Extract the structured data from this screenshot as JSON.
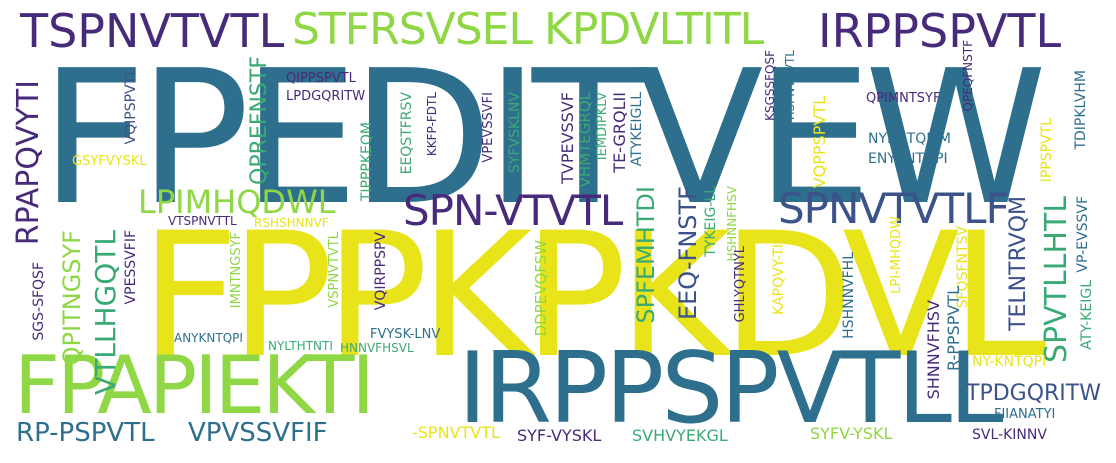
{
  "colors": {
    "purple": "#472a7a",
    "teal": "#2e6f8e",
    "green": "#3aaa75",
    "lime": "#8fd744",
    "yellow": "#e8e419",
    "blue": "#3b528b"
  },
  "words": [
    {
      "text": "FPEDITVEW",
      "color": "#2e6f8e"
    },
    {
      "text": "FPPKPKDVL",
      "color": "#e8e419"
    },
    {
      "text": "IRPPSPVTLL",
      "color": "#2e6f8e"
    },
    {
      "text": "FPAPIEKTI",
      "color": "#8fd744"
    },
    {
      "text": "TSPNVTVTL",
      "color": "#472a7a"
    },
    {
      "text": "STFRSVSEL",
      "color": "#8fd744"
    },
    {
      "text": "KPDVLTITL",
      "color": "#8fd744"
    },
    {
      "text": "IRPPSPVTL",
      "color": "#472a7a"
    },
    {
      "text": "SPN-VTVTL",
      "color": "#472a7a"
    },
    {
      "text": "SPNVTVTLF",
      "color": "#3b528b"
    },
    {
      "text": "LPIMHQDWL",
      "color": "#8fd744"
    },
    {
      "text": "RP-PSPVTL",
      "color": "#2e6f8e"
    },
    {
      "text": "VPVSSVFIF",
      "color": "#2e6f8e"
    },
    {
      "text": "RPAPQVYTI",
      "color": "#472a7a"
    },
    {
      "text": "QPREFNSTF",
      "color": "#3aaa75"
    },
    {
      "text": "VTLLHGQTL",
      "color": "#3aaa75"
    },
    {
      "text": "QPITNGSYF",
      "color": "#8fd744"
    },
    {
      "text": "SPFEMHTDI",
      "color": "#3aaa75"
    },
    {
      "text": "EEQ-FNSTF",
      "color": "#3b528b"
    },
    {
      "text": "SPVTLLHTL",
      "color": "#3aaa75"
    },
    {
      "text": "TELNTRVQM",
      "color": "#3b528b"
    },
    {
      "text": "TPDGQRITW",
      "color": "#3b528b"
    },
    {
      "text": "QIPPSPVTL",
      "color": "#472a7a"
    },
    {
      "text": "LPDGQRITW",
      "color": "#472a7a"
    },
    {
      "text": "VQIPSPVTL",
      "color": "#3b528b"
    },
    {
      "text": "GSYFVYSKL",
      "color": "#e8e419"
    },
    {
      "text": "KKFP-FDTL",
      "color": "#472a7a"
    },
    {
      "text": "EEQSTFRSV",
      "color": "#3aaa75"
    },
    {
      "text": "TIPPPKEQM",
      "color": "#3aaa75"
    },
    {
      "text": "VPEVSSVFI",
      "color": "#472a7a"
    },
    {
      "text": "SYFVSKLNV",
      "color": "#3aaa75"
    },
    {
      "text": "TVPEVSSVF",
      "color": "#472a7a"
    },
    {
      "text": "VHMTEGRQL",
      "color": "#3aaa75"
    },
    {
      "text": "IEMDIPKLV",
      "color": "#3aaa75"
    },
    {
      "text": "TE-GRQLII",
      "color": "#472a7a"
    },
    {
      "text": "ATYKEIGLL",
      "color": "#2e6f8e"
    },
    {
      "text": "TYKEIG-LL",
      "color": "#3aaa75"
    },
    {
      "text": "HSHNNFHSV",
      "color": "#8fd744"
    },
    {
      "text": "KSGSSFQSF",
      "color": "#472a7a"
    },
    {
      "text": "RSPNVTVTL",
      "color": "#2e6f8e"
    },
    {
      "text": "QPEQFNSTF",
      "color": "#472a7a"
    },
    {
      "text": "TDIPKLVHM",
      "color": "#2e6f8e"
    },
    {
      "text": "QPIMNTSYF",
      "color": "#472a7a"
    },
    {
      "text": "NYKNTQPIM",
      "color": "#2e6f8e"
    },
    {
      "text": "ENYKNTQPI",
      "color": "#2e6f8e"
    },
    {
      "text": "VQPPSPVTL",
      "color": "#e8e419"
    },
    {
      "text": "IPPSPVTL",
      "color": "#e8e419"
    },
    {
      "text": "VP-EVSSVF",
      "color": "#2e6f8e"
    },
    {
      "text": "VTSPNVTTL",
      "color": "#472a7a"
    },
    {
      "text": "RSHSHNNVF",
      "color": "#e8e419"
    },
    {
      "text": "SGS-SFQSF",
      "color": "#472a7a"
    },
    {
      "text": "VPESSVFIF",
      "color": "#472a7a"
    },
    {
      "text": "IMNTNGSYF",
      "color": "#8fd744"
    },
    {
      "text": "VSPNVTVTL",
      "color": "#8fd744"
    },
    {
      "text": "VQIRPPSPV",
      "color": "#472a7a"
    },
    {
      "text": "DDPEVQFSW",
      "color": "#8fd744"
    },
    {
      "text": "GHLYQTNYL",
      "color": "#472a7a"
    },
    {
      "text": "KAPQVY-TI",
      "color": "#e8e419"
    },
    {
      "text": "HSHNNVFHL",
      "color": "#2e6f8e"
    },
    {
      "text": "LPI-MHQDW",
      "color": "#e8e419"
    },
    {
      "text": "SFQSFNTSV",
      "color": "#e8e419"
    },
    {
      "text": "SHNNVFHSV",
      "color": "#472a7a"
    },
    {
      "text": "R-PPSPVTL",
      "color": "#2e6f8e"
    },
    {
      "text": "ATY-KEIGL",
      "color": "#3aaa75"
    },
    {
      "text": "NY-KNTQPI",
      "color": "#e8e419"
    },
    {
      "text": "ANYKNTQPI",
      "color": "#2e6f8e"
    },
    {
      "text": "NYLTHTNTI",
      "color": "#3aaa75"
    },
    {
      "text": "HNNVFHSVL",
      "color": "#3aaa75"
    },
    {
      "text": "FVYSK-LNV",
      "color": "#2e6f8e"
    },
    {
      "text": "FIIANATYI",
      "color": "#2e6f8e"
    },
    {
      "text": "-SPNVTVTL",
      "color": "#e8e419"
    },
    {
      "text": "SYF-VYSKL",
      "color": "#472a7a"
    },
    {
      "text": "SVHVYEKGL",
      "color": "#3aaa75"
    },
    {
      "text": "SYFV-YSKL",
      "color": "#8fd744"
    },
    {
      "text": "SVL-KINNV",
      "color": "#472a7a"
    }
  ]
}
